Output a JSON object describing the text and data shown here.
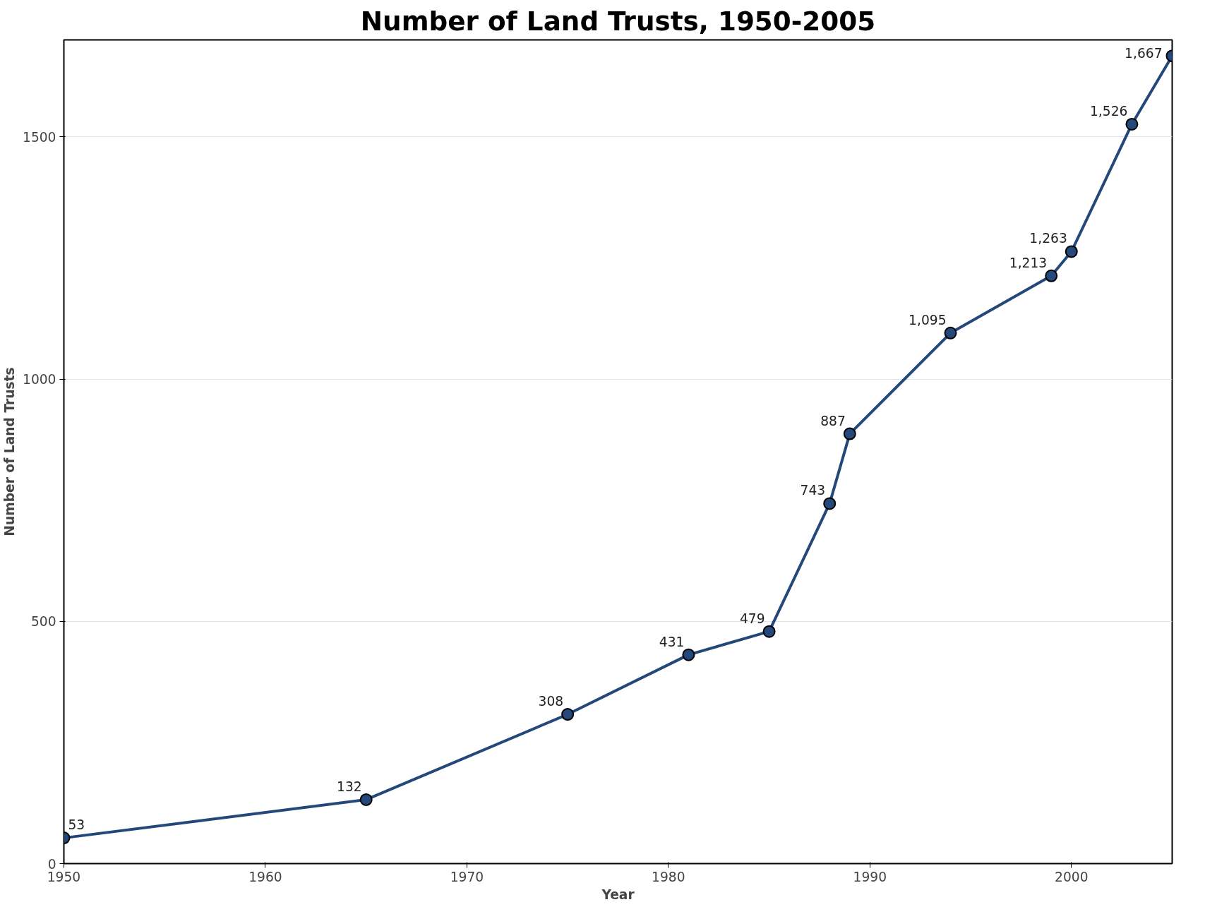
{
  "chart_data": {
    "type": "line",
    "title": "Number of Land Trusts, 1950-2005",
    "xlabel": "Year",
    "ylabel": "Number of Land Trusts",
    "x": [
      1950,
      1965,
      1975,
      1981,
      1985,
      1988,
      1989,
      1994,
      1999,
      2000,
      2003,
      2005
    ],
    "series": [
      {
        "color": "#24487a",
        "values": [
          53,
          132,
          308,
          431,
          479,
          743,
          887,
          1095,
          1213,
          1263,
          1526,
          1667
        ],
        "value_labels": [
          "53",
          "132",
          "308",
          "431",
          "479",
          "743",
          "887",
          "1,095",
          "1,213",
          "1,263",
          "1,526",
          "1,667"
        ]
      }
    ],
    "xlim": [
      1950,
      2005
    ],
    "ylim": [
      0,
      1700
    ],
    "xticks": [
      1950,
      1960,
      1970,
      1980,
      1990,
      2000
    ],
    "yticks": [
      0,
      500,
      1000,
      1500
    ],
    "grid": "y",
    "marker": "circle",
    "line_style": "solid"
  }
}
